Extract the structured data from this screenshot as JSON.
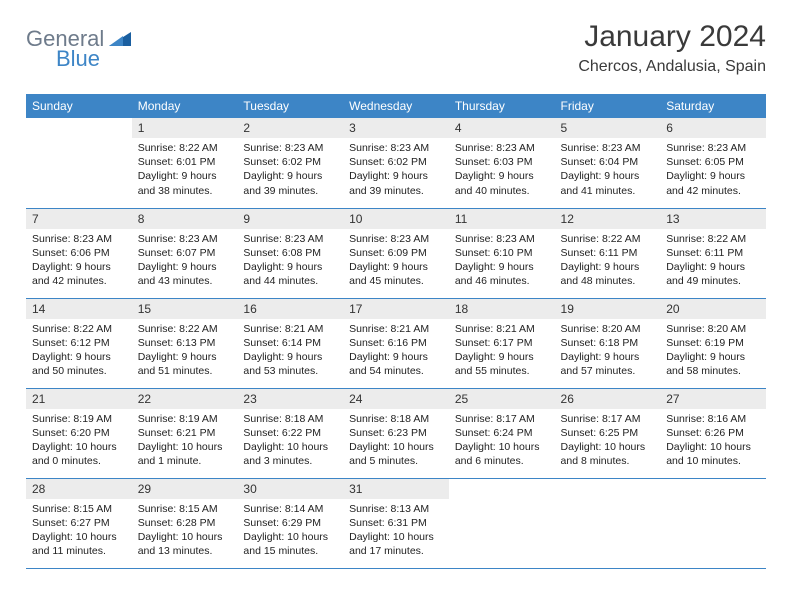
{
  "logo": {
    "part1": "General",
    "part2": "Blue"
  },
  "title": "January 2024",
  "location": "Chercos, Andalusia, Spain",
  "colors": {
    "header_bg": "#3d85c6",
    "header_text": "#ffffff",
    "daynum_bg": "#ececec",
    "row_border": "#3d85c6",
    "logo_gray": "#6e7b8b",
    "logo_blue": "#3d85c6"
  },
  "weekdays": [
    "Sunday",
    "Monday",
    "Tuesday",
    "Wednesday",
    "Thursday",
    "Friday",
    "Saturday"
  ],
  "weeks": [
    [
      {
        "n": "",
        "sunrise": "",
        "sunset": "",
        "daylight": ""
      },
      {
        "n": "1",
        "sunrise": "Sunrise: 8:22 AM",
        "sunset": "Sunset: 6:01 PM",
        "daylight": "Daylight: 9 hours and 38 minutes."
      },
      {
        "n": "2",
        "sunrise": "Sunrise: 8:23 AM",
        "sunset": "Sunset: 6:02 PM",
        "daylight": "Daylight: 9 hours and 39 minutes."
      },
      {
        "n": "3",
        "sunrise": "Sunrise: 8:23 AM",
        "sunset": "Sunset: 6:02 PM",
        "daylight": "Daylight: 9 hours and 39 minutes."
      },
      {
        "n": "4",
        "sunrise": "Sunrise: 8:23 AM",
        "sunset": "Sunset: 6:03 PM",
        "daylight": "Daylight: 9 hours and 40 minutes."
      },
      {
        "n": "5",
        "sunrise": "Sunrise: 8:23 AM",
        "sunset": "Sunset: 6:04 PM",
        "daylight": "Daylight: 9 hours and 41 minutes."
      },
      {
        "n": "6",
        "sunrise": "Sunrise: 8:23 AM",
        "sunset": "Sunset: 6:05 PM",
        "daylight": "Daylight: 9 hours and 42 minutes."
      }
    ],
    [
      {
        "n": "7",
        "sunrise": "Sunrise: 8:23 AM",
        "sunset": "Sunset: 6:06 PM",
        "daylight": "Daylight: 9 hours and 42 minutes."
      },
      {
        "n": "8",
        "sunrise": "Sunrise: 8:23 AM",
        "sunset": "Sunset: 6:07 PM",
        "daylight": "Daylight: 9 hours and 43 minutes."
      },
      {
        "n": "9",
        "sunrise": "Sunrise: 8:23 AM",
        "sunset": "Sunset: 6:08 PM",
        "daylight": "Daylight: 9 hours and 44 minutes."
      },
      {
        "n": "10",
        "sunrise": "Sunrise: 8:23 AM",
        "sunset": "Sunset: 6:09 PM",
        "daylight": "Daylight: 9 hours and 45 minutes."
      },
      {
        "n": "11",
        "sunrise": "Sunrise: 8:23 AM",
        "sunset": "Sunset: 6:10 PM",
        "daylight": "Daylight: 9 hours and 46 minutes."
      },
      {
        "n": "12",
        "sunrise": "Sunrise: 8:22 AM",
        "sunset": "Sunset: 6:11 PM",
        "daylight": "Daylight: 9 hours and 48 minutes."
      },
      {
        "n": "13",
        "sunrise": "Sunrise: 8:22 AM",
        "sunset": "Sunset: 6:11 PM",
        "daylight": "Daylight: 9 hours and 49 minutes."
      }
    ],
    [
      {
        "n": "14",
        "sunrise": "Sunrise: 8:22 AM",
        "sunset": "Sunset: 6:12 PM",
        "daylight": "Daylight: 9 hours and 50 minutes."
      },
      {
        "n": "15",
        "sunrise": "Sunrise: 8:22 AM",
        "sunset": "Sunset: 6:13 PM",
        "daylight": "Daylight: 9 hours and 51 minutes."
      },
      {
        "n": "16",
        "sunrise": "Sunrise: 8:21 AM",
        "sunset": "Sunset: 6:14 PM",
        "daylight": "Daylight: 9 hours and 53 minutes."
      },
      {
        "n": "17",
        "sunrise": "Sunrise: 8:21 AM",
        "sunset": "Sunset: 6:16 PM",
        "daylight": "Daylight: 9 hours and 54 minutes."
      },
      {
        "n": "18",
        "sunrise": "Sunrise: 8:21 AM",
        "sunset": "Sunset: 6:17 PM",
        "daylight": "Daylight: 9 hours and 55 minutes."
      },
      {
        "n": "19",
        "sunrise": "Sunrise: 8:20 AM",
        "sunset": "Sunset: 6:18 PM",
        "daylight": "Daylight: 9 hours and 57 minutes."
      },
      {
        "n": "20",
        "sunrise": "Sunrise: 8:20 AM",
        "sunset": "Sunset: 6:19 PM",
        "daylight": "Daylight: 9 hours and 58 minutes."
      }
    ],
    [
      {
        "n": "21",
        "sunrise": "Sunrise: 8:19 AM",
        "sunset": "Sunset: 6:20 PM",
        "daylight": "Daylight: 10 hours and 0 minutes."
      },
      {
        "n": "22",
        "sunrise": "Sunrise: 8:19 AM",
        "sunset": "Sunset: 6:21 PM",
        "daylight": "Daylight: 10 hours and 1 minute."
      },
      {
        "n": "23",
        "sunrise": "Sunrise: 8:18 AM",
        "sunset": "Sunset: 6:22 PM",
        "daylight": "Daylight: 10 hours and 3 minutes."
      },
      {
        "n": "24",
        "sunrise": "Sunrise: 8:18 AM",
        "sunset": "Sunset: 6:23 PM",
        "daylight": "Daylight: 10 hours and 5 minutes."
      },
      {
        "n": "25",
        "sunrise": "Sunrise: 8:17 AM",
        "sunset": "Sunset: 6:24 PM",
        "daylight": "Daylight: 10 hours and 6 minutes."
      },
      {
        "n": "26",
        "sunrise": "Sunrise: 8:17 AM",
        "sunset": "Sunset: 6:25 PM",
        "daylight": "Daylight: 10 hours and 8 minutes."
      },
      {
        "n": "27",
        "sunrise": "Sunrise: 8:16 AM",
        "sunset": "Sunset: 6:26 PM",
        "daylight": "Daylight: 10 hours and 10 minutes."
      }
    ],
    [
      {
        "n": "28",
        "sunrise": "Sunrise: 8:15 AM",
        "sunset": "Sunset: 6:27 PM",
        "daylight": "Daylight: 10 hours and 11 minutes."
      },
      {
        "n": "29",
        "sunrise": "Sunrise: 8:15 AM",
        "sunset": "Sunset: 6:28 PM",
        "daylight": "Daylight: 10 hours and 13 minutes."
      },
      {
        "n": "30",
        "sunrise": "Sunrise: 8:14 AM",
        "sunset": "Sunset: 6:29 PM",
        "daylight": "Daylight: 10 hours and 15 minutes."
      },
      {
        "n": "31",
        "sunrise": "Sunrise: 8:13 AM",
        "sunset": "Sunset: 6:31 PM",
        "daylight": "Daylight: 10 hours and 17 minutes."
      },
      {
        "n": "",
        "sunrise": "",
        "sunset": "",
        "daylight": ""
      },
      {
        "n": "",
        "sunrise": "",
        "sunset": "",
        "daylight": ""
      },
      {
        "n": "",
        "sunrise": "",
        "sunset": "",
        "daylight": ""
      }
    ]
  ]
}
